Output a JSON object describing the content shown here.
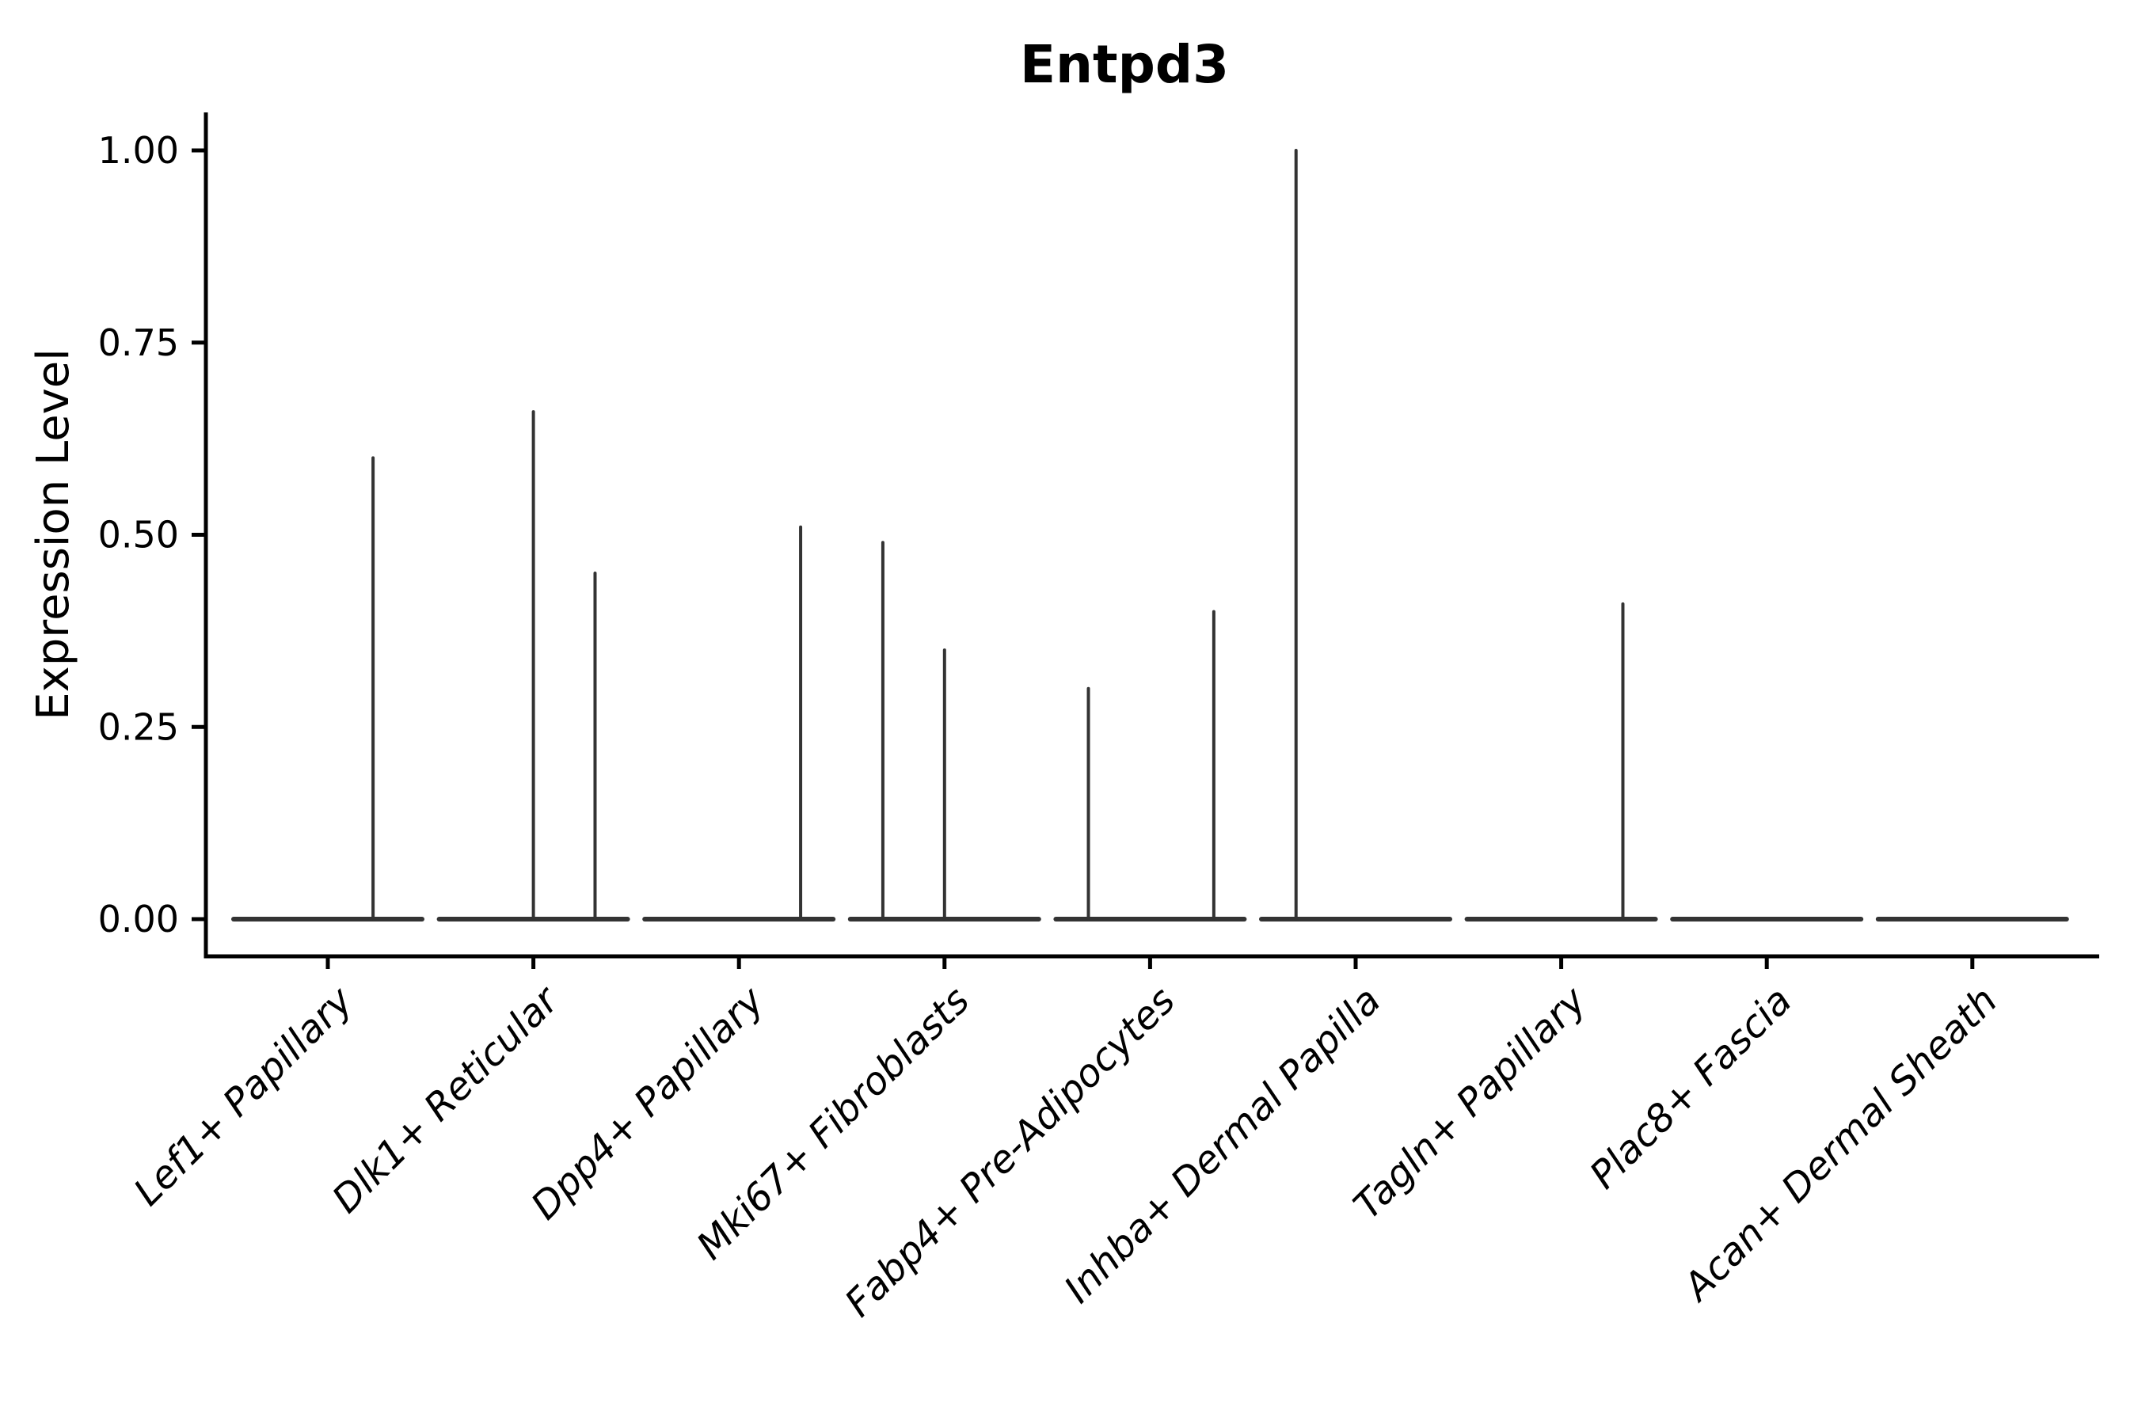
{
  "figure": {
    "title": "Entpd3"
  },
  "chart_data": {
    "type": "violin",
    "title": "Entpd3",
    "xlabel": "",
    "ylabel": "Expression Level",
    "ylim": [
      0,
      1.05
    ],
    "ytick_values": [
      0,
      0.25,
      0.5,
      0.75,
      1.0
    ],
    "ytick_labels": [
      "0.00",
      "0.25",
      "0.50",
      "0.75",
      "1.00"
    ],
    "grid": false,
    "legend_position": "none",
    "categories": [
      "Lef1+ Papillary",
      "Dlk1+ Reticular",
      "Dpp4+ Papillary",
      "Mki67+ Fibroblasts",
      "Fabp4+ Pre-Adipocytes",
      "Inhba+ Dermal Papilla",
      "Tagln+ Papillary",
      "Plac8+ Fascia",
      "Acan+ Dermal Sheath"
    ],
    "violins": [
      {
        "category": "Lef1+ Papillary",
        "baseline_value": 0,
        "spikes": [
          {
            "offset_frac": 0.22,
            "peak": 0.6
          }
        ]
      },
      {
        "category": "Dlk1+ Reticular",
        "baseline_value": 0,
        "spikes": [
          {
            "offset_frac": 0.0,
            "peak": 0.66
          },
          {
            "offset_frac": 0.3,
            "peak": 0.45
          }
        ]
      },
      {
        "category": "Dpp4+ Papillary",
        "baseline_value": 0,
        "spikes": [
          {
            "offset_frac": 0.3,
            "peak": 0.51
          }
        ]
      },
      {
        "category": "Mki67+ Fibroblasts",
        "baseline_value": 0,
        "spikes": [
          {
            "offset_frac": -0.3,
            "peak": 0.49
          },
          {
            "offset_frac": 0.0,
            "peak": 0.35
          }
        ]
      },
      {
        "category": "Fabp4+ Pre-Adipocytes",
        "baseline_value": 0,
        "spikes": [
          {
            "offset_frac": -0.3,
            "peak": 0.3
          },
          {
            "offset_frac": 0.31,
            "peak": 0.4
          }
        ]
      },
      {
        "category": "Inhba+ Dermal Papilla",
        "baseline_value": 0,
        "spikes": [
          {
            "offset_frac": -0.29,
            "peak": 1.0
          }
        ]
      },
      {
        "category": "Tagln+ Papillary",
        "baseline_value": 0,
        "spikes": [
          {
            "offset_frac": 0.3,
            "peak": 0.41
          }
        ]
      },
      {
        "category": "Plac8+ Fascia",
        "baseline_value": 0,
        "spikes": []
      },
      {
        "category": "Acan+ Dermal Sheath",
        "baseline_value": 0,
        "spikes": []
      }
    ],
    "colors": {
      "violin_stroke": "#333333",
      "axis": "#000000",
      "text": "#000000",
      "background": "#ffffff"
    },
    "x_tick_label_style": "italic, rotated 45deg"
  }
}
